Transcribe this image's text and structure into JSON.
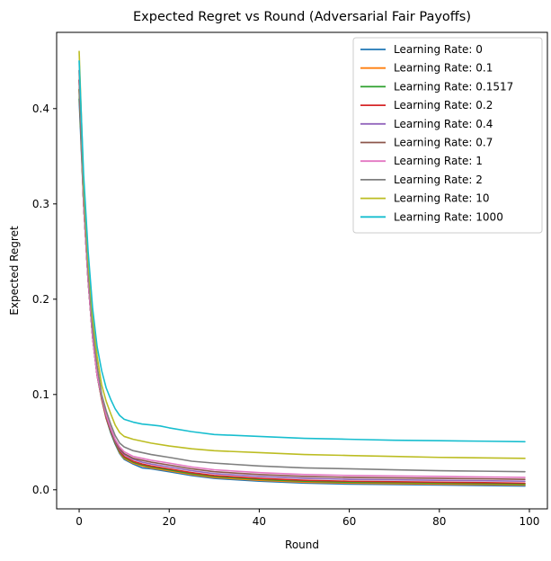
{
  "chart_data": {
    "type": "line",
    "title": "Expected Regret vs Round (Adversarial Fair Payoffs)",
    "xlabel": "Round",
    "ylabel": "Expected Regret",
    "xlim": [
      -5,
      104
    ],
    "ylim": [
      -0.02,
      0.48
    ],
    "xticks": [
      0,
      20,
      40,
      60,
      80,
      100
    ],
    "yticks": [
      0.0,
      0.1,
      0.2,
      0.3,
      0.4
    ],
    "ytick_labels": [
      "0.0",
      "0.1",
      "0.2",
      "0.3",
      "0.4"
    ],
    "legend_position": "top-right",
    "grid": false,
    "series": [
      {
        "name": "Learning Rate: 0",
        "color": "#1f77b4",
        "points": [
          [
            0,
            0.41
          ],
          [
            1,
            0.3
          ],
          [
            2,
            0.22
          ],
          [
            3,
            0.16
          ],
          [
            4,
            0.12
          ],
          [
            5,
            0.095
          ],
          [
            6,
            0.075
          ],
          [
            7,
            0.06
          ],
          [
            8,
            0.048
          ],
          [
            9,
            0.038
          ],
          [
            10,
            0.032
          ],
          [
            12,
            0.027
          ],
          [
            14,
            0.023
          ],
          [
            16,
            0.022
          ],
          [
            20,
            0.019
          ],
          [
            25,
            0.015
          ],
          [
            30,
            0.012
          ],
          [
            40,
            0.009
          ],
          [
            50,
            0.007
          ],
          [
            60,
            0.006
          ],
          [
            70,
            0.0055
          ],
          [
            80,
            0.005
          ],
          [
            90,
            0.0045
          ],
          [
            99,
            0.004
          ]
        ]
      },
      {
        "name": "Learning Rate: 0.1",
        "color": "#ff7f0e",
        "points": [
          [
            0,
            0.42
          ],
          [
            1,
            0.3
          ],
          [
            2,
            0.22
          ],
          [
            3,
            0.16
          ],
          [
            4,
            0.12
          ],
          [
            5,
            0.095
          ],
          [
            6,
            0.075
          ],
          [
            7,
            0.061
          ],
          [
            8,
            0.049
          ],
          [
            9,
            0.039
          ],
          [
            10,
            0.033
          ],
          [
            12,
            0.028
          ],
          [
            14,
            0.025
          ],
          [
            16,
            0.023
          ],
          [
            20,
            0.02
          ],
          [
            25,
            0.016
          ],
          [
            30,
            0.013
          ],
          [
            40,
            0.01
          ],
          [
            50,
            0.008
          ],
          [
            60,
            0.007
          ],
          [
            70,
            0.0065
          ],
          [
            80,
            0.006
          ],
          [
            90,
            0.0055
          ],
          [
            99,
            0.005
          ]
        ]
      },
      {
        "name": "Learning Rate: 0.1517",
        "color": "#2ca02c",
        "points": [
          [
            0,
            0.42
          ],
          [
            1,
            0.3
          ],
          [
            2,
            0.22
          ],
          [
            3,
            0.16
          ],
          [
            4,
            0.12
          ],
          [
            5,
            0.096
          ],
          [
            6,
            0.076
          ],
          [
            7,
            0.061
          ],
          [
            8,
            0.049
          ],
          [
            9,
            0.04
          ],
          [
            10,
            0.034
          ],
          [
            12,
            0.029
          ],
          [
            14,
            0.026
          ],
          [
            16,
            0.024
          ],
          [
            20,
            0.021
          ],
          [
            25,
            0.017
          ],
          [
            30,
            0.014
          ],
          [
            40,
            0.011
          ],
          [
            50,
            0.009
          ],
          [
            60,
            0.008
          ],
          [
            70,
            0.0075
          ],
          [
            80,
            0.007
          ],
          [
            90,
            0.0065
          ],
          [
            99,
            0.006
          ]
        ]
      },
      {
        "name": "Learning Rate: 0.2",
        "color": "#d62728",
        "points": [
          [
            0,
            0.43
          ],
          [
            1,
            0.3
          ],
          [
            2,
            0.22
          ],
          [
            3,
            0.16
          ],
          [
            4,
            0.12
          ],
          [
            5,
            0.096
          ],
          [
            6,
            0.076
          ],
          [
            7,
            0.062
          ],
          [
            8,
            0.05
          ],
          [
            9,
            0.041
          ],
          [
            10,
            0.035
          ],
          [
            12,
            0.03
          ],
          [
            14,
            0.027
          ],
          [
            16,
            0.025
          ],
          [
            20,
            0.022
          ],
          [
            25,
            0.018
          ],
          [
            30,
            0.015
          ],
          [
            40,
            0.012
          ],
          [
            50,
            0.01
          ],
          [
            60,
            0.009
          ],
          [
            70,
            0.0085
          ],
          [
            80,
            0.008
          ],
          [
            90,
            0.0075
          ],
          [
            99,
            0.007
          ]
        ]
      },
      {
        "name": "Learning Rate: 0.4",
        "color": "#9467bd",
        "points": [
          [
            0,
            0.43
          ],
          [
            1,
            0.3
          ],
          [
            2,
            0.22
          ],
          [
            3,
            0.16
          ],
          [
            4,
            0.12
          ],
          [
            5,
            0.097
          ],
          [
            6,
            0.077
          ],
          [
            7,
            0.063
          ],
          [
            8,
            0.051
          ],
          [
            9,
            0.042
          ],
          [
            10,
            0.037
          ],
          [
            12,
            0.032
          ],
          [
            14,
            0.029
          ],
          [
            16,
            0.027
          ],
          [
            20,
            0.024
          ],
          [
            25,
            0.02
          ],
          [
            30,
            0.017
          ],
          [
            40,
            0.014
          ],
          [
            50,
            0.012
          ],
          [
            60,
            0.011
          ],
          [
            70,
            0.0105
          ],
          [
            80,
            0.01
          ],
          [
            90,
            0.0095
          ],
          [
            99,
            0.009
          ]
        ]
      },
      {
        "name": "Learning Rate: 0.7",
        "color": "#8c564b",
        "points": [
          [
            0,
            0.43
          ],
          [
            1,
            0.3
          ],
          [
            2,
            0.22
          ],
          [
            3,
            0.16
          ],
          [
            4,
            0.12
          ],
          [
            5,
            0.097
          ],
          [
            6,
            0.078
          ],
          [
            7,
            0.064
          ],
          [
            8,
            0.052
          ],
          [
            9,
            0.043
          ],
          [
            10,
            0.038
          ],
          [
            12,
            0.033
          ],
          [
            14,
            0.031
          ],
          [
            16,
            0.029
          ],
          [
            20,
            0.026
          ],
          [
            25,
            0.022
          ],
          [
            30,
            0.019
          ],
          [
            40,
            0.016
          ],
          [
            50,
            0.014
          ],
          [
            60,
            0.013
          ],
          [
            70,
            0.0125
          ],
          [
            80,
            0.012
          ],
          [
            90,
            0.0115
          ],
          [
            99,
            0.011
          ]
        ]
      },
      {
        "name": "Learning Rate: 1",
        "color": "#e377c2",
        "points": [
          [
            0,
            0.44
          ],
          [
            1,
            0.3
          ],
          [
            2,
            0.22
          ],
          [
            3,
            0.16
          ],
          [
            4,
            0.12
          ],
          [
            5,
            0.098
          ],
          [
            6,
            0.079
          ],
          [
            7,
            0.065
          ],
          [
            8,
            0.053
          ],
          [
            9,
            0.045
          ],
          [
            10,
            0.04
          ],
          [
            12,
            0.035
          ],
          [
            14,
            0.033
          ],
          [
            16,
            0.031
          ],
          [
            20,
            0.028
          ],
          [
            25,
            0.024
          ],
          [
            30,
            0.021
          ],
          [
            40,
            0.018
          ],
          [
            50,
            0.016
          ],
          [
            60,
            0.015
          ],
          [
            70,
            0.0145
          ],
          [
            80,
            0.014
          ],
          [
            90,
            0.0135
          ],
          [
            99,
            0.013
          ]
        ]
      },
      {
        "name": "Learning Rate: 2",
        "color": "#7f7f7f",
        "points": [
          [
            0,
            0.44
          ],
          [
            1,
            0.31
          ],
          [
            2,
            0.23
          ],
          [
            3,
            0.17
          ],
          [
            4,
            0.13
          ],
          [
            5,
            0.1
          ],
          [
            6,
            0.083
          ],
          [
            7,
            0.069
          ],
          [
            8,
            0.057
          ],
          [
            9,
            0.049
          ],
          [
            10,
            0.045
          ],
          [
            12,
            0.041
          ],
          [
            14,
            0.039
          ],
          [
            16,
            0.037
          ],
          [
            20,
            0.034
          ],
          [
            25,
            0.03
          ],
          [
            30,
            0.028
          ],
          [
            40,
            0.025
          ],
          [
            50,
            0.023
          ],
          [
            60,
            0.022
          ],
          [
            70,
            0.021
          ],
          [
            80,
            0.02
          ],
          [
            90,
            0.0195
          ],
          [
            99,
            0.019
          ]
        ]
      },
      {
        "name": "Learning Rate: 10",
        "color": "#bcbd22",
        "points": [
          [
            0,
            0.46
          ],
          [
            1,
            0.32
          ],
          [
            2,
            0.24
          ],
          [
            3,
            0.18
          ],
          [
            4,
            0.14
          ],
          [
            5,
            0.11
          ],
          [
            6,
            0.093
          ],
          [
            7,
            0.08
          ],
          [
            8,
            0.068
          ],
          [
            9,
            0.06
          ],
          [
            10,
            0.056
          ],
          [
            12,
            0.053
          ],
          [
            14,
            0.051
          ],
          [
            16,
            0.049
          ],
          [
            20,
            0.046
          ],
          [
            25,
            0.043
          ],
          [
            30,
            0.041
          ],
          [
            40,
            0.039
          ],
          [
            50,
            0.037
          ],
          [
            60,
            0.036
          ],
          [
            70,
            0.035
          ],
          [
            80,
            0.034
          ],
          [
            90,
            0.0335
          ],
          [
            99,
            0.033
          ]
        ]
      },
      {
        "name": "Learning Rate: 1000",
        "color": "#17becf",
        "points": [
          [
            0,
            0.45
          ],
          [
            1,
            0.33
          ],
          [
            2,
            0.25
          ],
          [
            3,
            0.19
          ],
          [
            4,
            0.15
          ],
          [
            5,
            0.125
          ],
          [
            6,
            0.107
          ],
          [
            7,
            0.095
          ],
          [
            8,
            0.085
          ],
          [
            9,
            0.078
          ],
          [
            10,
            0.074
          ],
          [
            12,
            0.071
          ],
          [
            14,
            0.069
          ],
          [
            16,
            0.068
          ],
          [
            18,
            0.067
          ],
          [
            20,
            0.065
          ],
          [
            25,
            0.061
          ],
          [
            30,
            0.058
          ],
          [
            40,
            0.056
          ],
          [
            50,
            0.054
          ],
          [
            60,
            0.053
          ],
          [
            70,
            0.052
          ],
          [
            80,
            0.0515
          ],
          [
            90,
            0.051
          ],
          [
            99,
            0.0505
          ]
        ]
      }
    ]
  }
}
